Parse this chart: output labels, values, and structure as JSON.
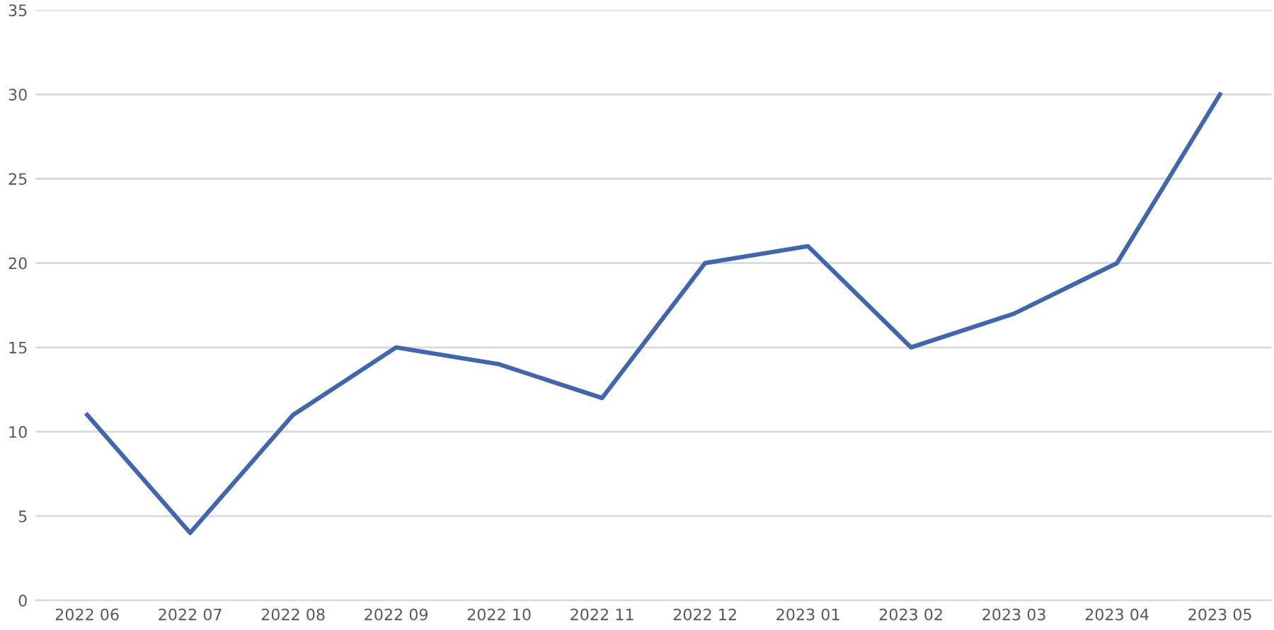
{
  "chart_data": {
    "type": "line",
    "categories": [
      "2022 06",
      "2022 07",
      "2022 08",
      "2022 09",
      "2022 10",
      "2022 11",
      "2022 12",
      "2023 01",
      "2023 02",
      "2023 03",
      "2023 04",
      "2023 05"
    ],
    "series": [
      {
        "color": "#4066b0",
        "values": [
          11,
          4,
          11,
          15,
          14,
          12,
          20,
          21,
          15,
          17,
          20,
          30
        ]
      }
    ],
    "ylim": [
      0,
      35
    ],
    "yticks": [
      0,
      5,
      10,
      15,
      20,
      25,
      30,
      35
    ],
    "grid": "y",
    "marker": "none",
    "line_style": "solid"
  }
}
